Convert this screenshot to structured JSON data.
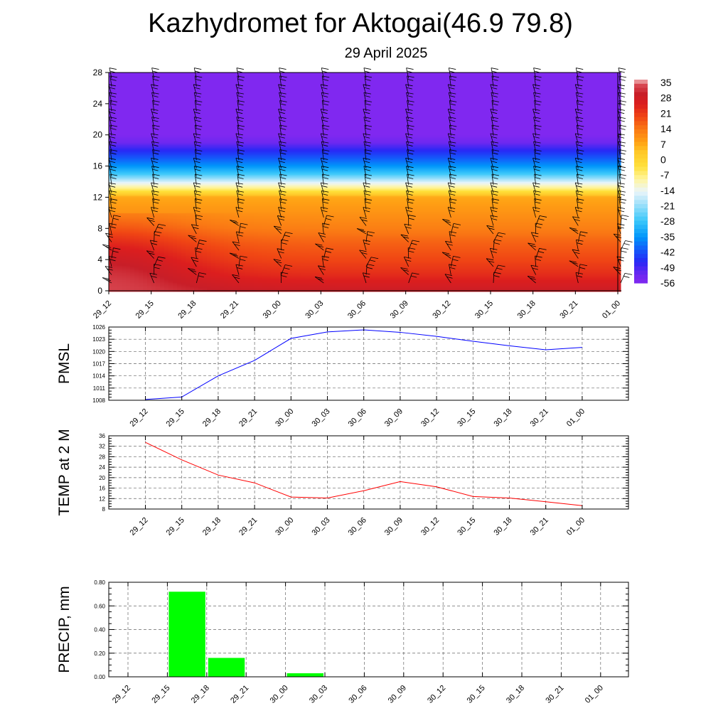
{
  "title": "Kazhydromet for Aktogai(46.9 79.8)",
  "subtitle": "29 April 2025",
  "chart_data": [
    {
      "type": "heatmap",
      "title": "",
      "xlabel": "",
      "ylabel": "",
      "x_ticks": [
        "29_12",
        "29_15",
        "29_18",
        "29_21",
        "30_00",
        "30_03",
        "30_06",
        "30_09",
        "30_12",
        "30_15",
        "30_18",
        "30_21",
        "01_00"
      ],
      "y_ticks": [
        0,
        4,
        8,
        12,
        16,
        20,
        24,
        28
      ],
      "ylim": [
        0,
        28
      ],
      "colorbar": {
        "labels": [
          "35",
          "28",
          "21",
          "14",
          "7",
          "0",
          "-7",
          "-14",
          "-21",
          "-28",
          "-35",
          "-42",
          "-49",
          "-56"
        ],
        "range": [
          -60,
          38
        ]
      },
      "level_temperature_profile": [
        {
          "level": 0,
          "temp": 30
        },
        {
          "level": 2,
          "temp": 24
        },
        {
          "level": 4,
          "temp": 20
        },
        {
          "level": 6,
          "temp": 17
        },
        {
          "level": 8,
          "temp": 13
        },
        {
          "level": 10,
          "temp": 10
        },
        {
          "level": 12,
          "temp": 7
        },
        {
          "level": 13,
          "temp": -7
        },
        {
          "level": 14,
          "temp": -18
        },
        {
          "level": 15,
          "temp": -30
        },
        {
          "level": 16,
          "temp": -38
        },
        {
          "level": 17,
          "temp": -44
        },
        {
          "level": 18,
          "temp": -50
        },
        {
          "level": 19,
          "temp": -56
        },
        {
          "level": 20,
          "temp": -60
        },
        {
          "level": 28,
          "temp": -60
        }
      ],
      "low_level_warm_core": {
        "x_index": 0,
        "max_temp": 35
      },
      "wind_barbs": true,
      "grid": false
    },
    {
      "type": "line",
      "ylabel": "PMSL",
      "categories": [
        "29_12",
        "29_15",
        "29_18",
        "29_21",
        "30_00",
        "30_03",
        "30_06",
        "30_09",
        "30_12",
        "30_15",
        "30_18",
        "30_21",
        "01_00"
      ],
      "y_ticks": [
        1008,
        1011,
        1014,
        1017,
        1020,
        1023,
        1026
      ],
      "ylim": [
        1008,
        1026
      ],
      "series": [
        {
          "values": [
            1008.2,
            1008.8,
            1014.0,
            1017.8,
            1023.2,
            1024.8,
            1025.3,
            1024.7,
            1023.7,
            1022.5,
            1021.4,
            1020.4,
            1021.0
          ]
        }
      ],
      "color": "#0000ff",
      "grid": true
    },
    {
      "type": "line",
      "ylabel": "TEMP at 2 M",
      "categories": [
        "29_12",
        "29_15",
        "29_18",
        "29_21",
        "30_00",
        "30_03",
        "30_06",
        "30_09",
        "30_12",
        "30_15",
        "30_18",
        "30_21",
        "01_00"
      ],
      "y_ticks": [
        8,
        12,
        16,
        20,
        24,
        28,
        32,
        36
      ],
      "ylim": [
        8,
        36
      ],
      "series": [
        {
          "values": [
            33.5,
            26.8,
            21.0,
            18.0,
            12.6,
            12.2,
            15.0,
            18.5,
            16.5,
            12.8,
            12.2,
            10.8,
            9.3
          ]
        }
      ],
      "color": "#ff0000",
      "grid": true
    },
    {
      "type": "bar",
      "ylabel": "PRECIP, mm",
      "categories": [
        "29_12",
        "29_15",
        "29_18",
        "29_21",
        "30_00",
        "30_03",
        "30_06",
        "30_09",
        "30_12",
        "30_15",
        "30_18",
        "30_21",
        "01_00"
      ],
      "values": [
        0,
        0.72,
        0.16,
        0,
        0.03,
        0,
        0,
        0,
        0,
        0,
        0,
        0,
        0
      ],
      "y_ticks": [
        "0.00",
        "0.20",
        "0.40",
        "0.60",
        "0.80"
      ],
      "ylim": [
        0,
        0.8
      ],
      "color": "#00ff00",
      "grid": true
    }
  ]
}
